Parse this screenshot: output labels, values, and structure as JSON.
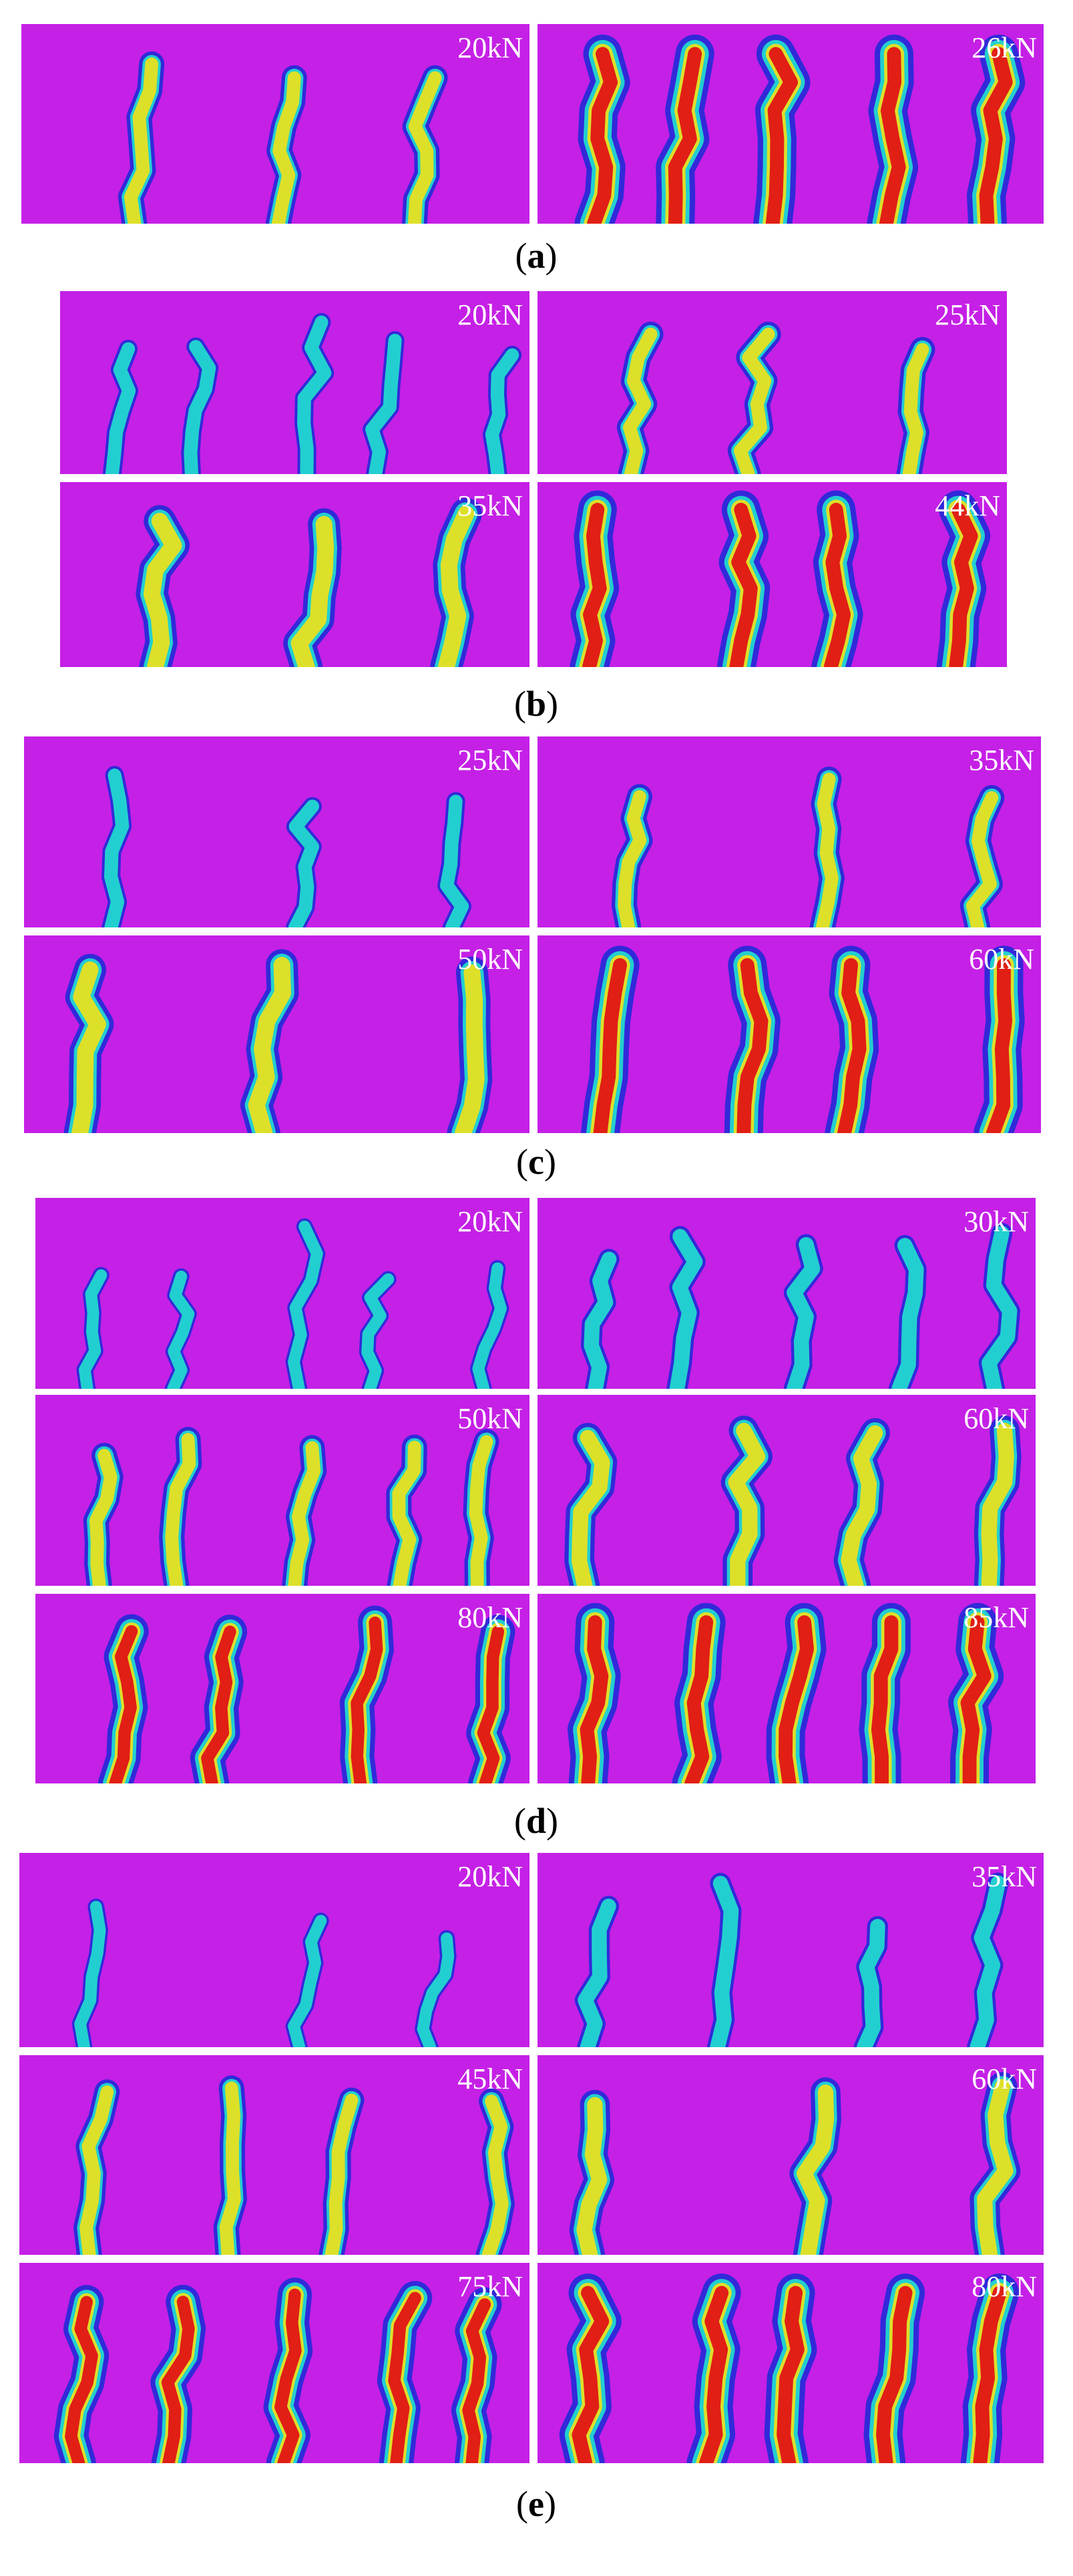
{
  "panels": [
    {
      "caption": [
        "(",
        "a",
        ")"
      ],
      "images": [
        "20kN",
        "26kN"
      ]
    },
    {
      "caption": [
        "(",
        "b",
        ")"
      ],
      "images": [
        "20kN",
        "25kN",
        "35kN",
        "44kN"
      ]
    },
    {
      "caption": [
        "(",
        "c",
        ")"
      ],
      "images": [
        "25kN",
        "35kN",
        "50kN",
        "60kN"
      ]
    },
    {
      "caption": [
        "(",
        "d",
        ")"
      ],
      "images": [
        "20kN",
        "30kN",
        "50kN",
        "60kN",
        "80kN",
        "85kN"
      ]
    },
    {
      "caption": [
        "(",
        "e",
        ")"
      ],
      "images": [
        "20kN",
        "35kN",
        "45kN",
        "60kN",
        "75kN",
        "80kN"
      ]
    }
  ]
}
